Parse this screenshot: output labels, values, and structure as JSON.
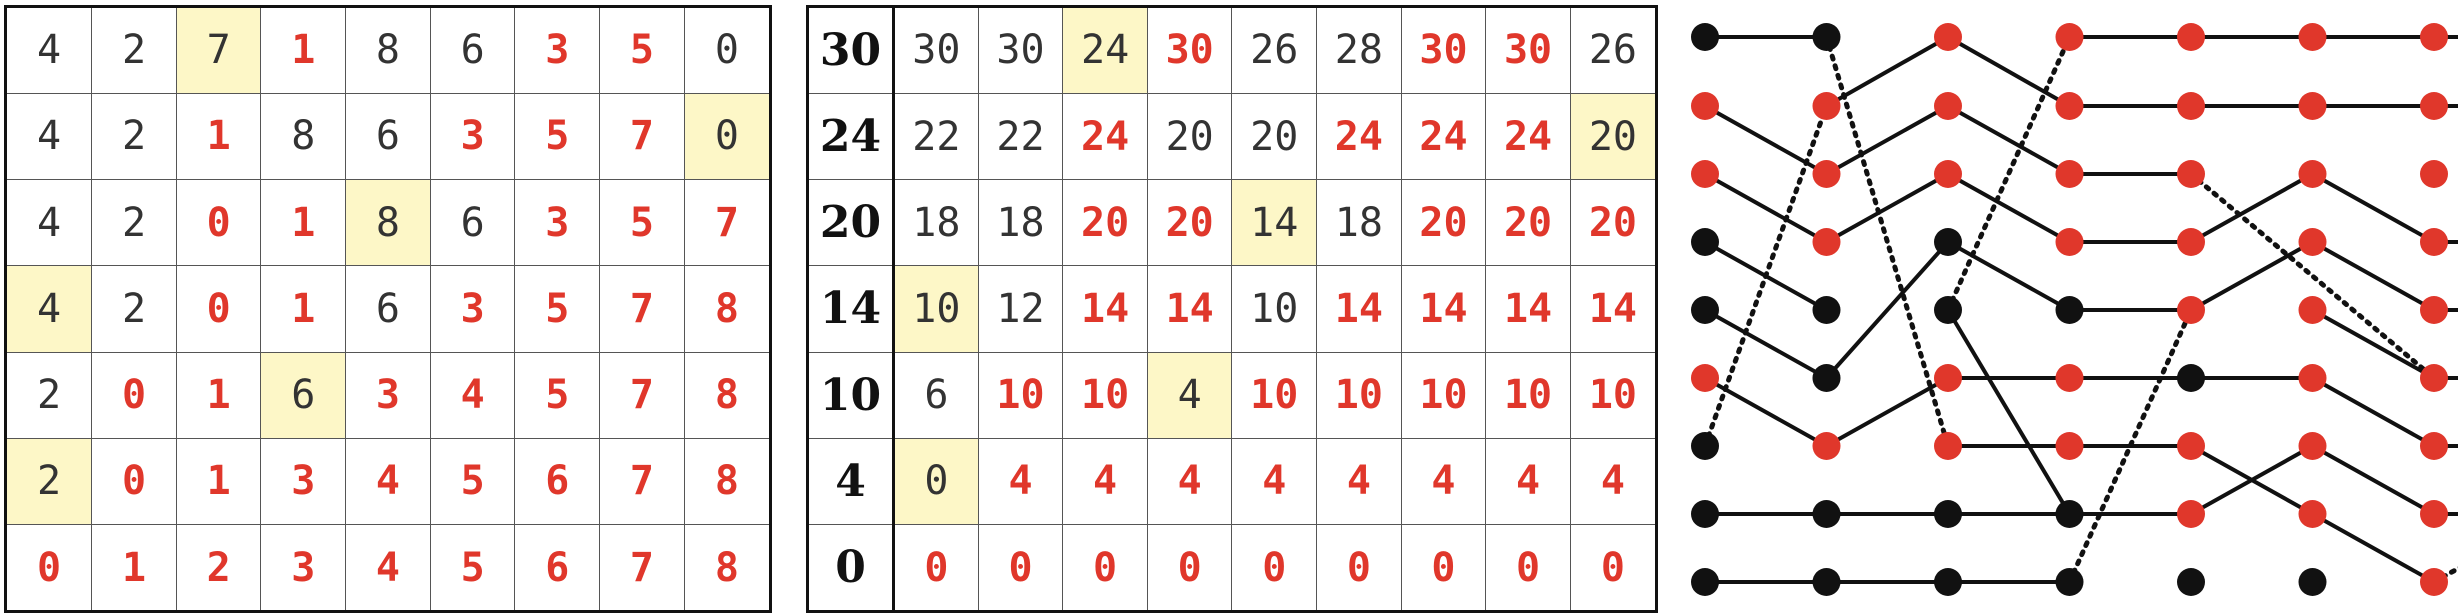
{
  "left_table": {
    "rows": [
      [
        "4",
        "2",
        "7",
        "1",
        "8",
        "6",
        "3",
        "5",
        "0"
      ],
      [
        "4",
        "2",
        "1",
        "8",
        "6",
        "3",
        "5",
        "7",
        "0"
      ],
      [
        "4",
        "2",
        "0",
        "1",
        "8",
        "6",
        "3",
        "5",
        "7"
      ],
      [
        "4",
        "2",
        "0",
        "1",
        "6",
        "3",
        "5",
        "7",
        "8"
      ],
      [
        "2",
        "0",
        "1",
        "6",
        "3",
        "4",
        "5",
        "7",
        "8"
      ],
      [
        "2",
        "0",
        "1",
        "3",
        "4",
        "5",
        "6",
        "7",
        "8"
      ],
      [
        "0",
        "1",
        "2",
        "3",
        "4",
        "5",
        "6",
        "7",
        "8"
      ]
    ],
    "red": [
      [
        0,
        0,
        0,
        1,
        0,
        0,
        1,
        1,
        0
      ],
      [
        0,
        0,
        1,
        0,
        0,
        1,
        1,
        1,
        0
      ],
      [
        0,
        0,
        1,
        1,
        0,
        0,
        1,
        1,
        1
      ],
      [
        0,
        0,
        1,
        1,
        0,
        1,
        1,
        1,
        1
      ],
      [
        0,
        1,
        1,
        0,
        1,
        1,
        1,
        1,
        1
      ],
      [
        0,
        1,
        1,
        1,
        1,
        1,
        1,
        1,
        1
      ],
      [
        1,
        1,
        1,
        1,
        1,
        1,
        1,
        1,
        1
      ]
    ],
    "highlight": [
      [
        0,
        2
      ],
      [
        1,
        8
      ],
      [
        2,
        4
      ],
      [
        3,
        0
      ],
      [
        4,
        3
      ],
      [
        5,
        0
      ]
    ]
  },
  "middle_table": {
    "row_labels": [
      "30",
      "24",
      "20",
      "14",
      "10",
      "4",
      "0"
    ],
    "rows": [
      [
        "30",
        "30",
        "24",
        "30",
        "26",
        "28",
        "30",
        "30",
        "26"
      ],
      [
        "22",
        "22",
        "24",
        "20",
        "20",
        "24",
        "24",
        "24",
        "20"
      ],
      [
        "18",
        "18",
        "20",
        "20",
        "14",
        "18",
        "20",
        "20",
        "20"
      ],
      [
        "10",
        "12",
        "14",
        "14",
        "10",
        "14",
        "14",
        "14",
        "14"
      ],
      [
        "6",
        "10",
        "10",
        "4",
        "10",
        "10",
        "10",
        "10",
        "10"
      ],
      [
        "0",
        "4",
        "4",
        "4",
        "4",
        "4",
        "4",
        "4",
        "4"
      ],
      [
        "0",
        "0",
        "0",
        "0",
        "0",
        "0",
        "0",
        "0",
        "0"
      ]
    ],
    "red": [
      [
        0,
        0,
        0,
        1,
        0,
        0,
        1,
        1,
        0
      ],
      [
        0,
        0,
        1,
        0,
        0,
        1,
        1,
        1,
        0
      ],
      [
        0,
        0,
        1,
        1,
        0,
        0,
        1,
        1,
        1
      ],
      [
        0,
        0,
        1,
        1,
        0,
        1,
        1,
        1,
        1
      ],
      [
        0,
        1,
        1,
        0,
        1,
        1,
        1,
        1,
        1
      ],
      [
        0,
        1,
        1,
        1,
        1,
        1,
        1,
        1,
        1
      ],
      [
        1,
        1,
        1,
        1,
        1,
        1,
        1,
        1,
        1
      ]
    ],
    "highlight": [
      [
        0,
        2
      ],
      [
        1,
        8
      ],
      [
        2,
        4
      ],
      [
        3,
        0
      ],
      [
        4,
        3
      ],
      [
        5,
        0
      ]
    ]
  },
  "network": {
    "colors": {
      "red": "#e0372b",
      "black": "#111111"
    },
    "node_colors": [
      [
        "B",
        "B",
        "R",
        "R",
        "R",
        "R",
        "R",
        "R"
      ],
      [
        "R",
        "R",
        "R",
        "R",
        "R",
        "R",
        "R",
        "R"
      ],
      [
        "R",
        "R",
        "R",
        "R",
        "R",
        "R",
        "R",
        "R"
      ],
      [
        "B",
        "R",
        "B",
        "R",
        "R",
        "R",
        "R",
        "R"
      ],
      [
        "B",
        "B",
        "B",
        "B",
        "R",
        "R",
        "R",
        "R"
      ],
      [
        "R",
        "B",
        "R",
        "R",
        "B",
        "R",
        "R",
        "R"
      ],
      [
        "B",
        "R",
        "R",
        "R",
        "R",
        "R",
        "R",
        "R"
      ],
      [
        "B",
        "B",
        "B",
        "B",
        "R",
        "R",
        "R",
        "R"
      ],
      [
        "B",
        "B",
        "B",
        "B",
        "B",
        "B",
        "R",
        "R"
      ]
    ],
    "solid_edges": [
      [
        0,
        0,
        0,
        1
      ],
      [
        1,
        0,
        2,
        1
      ],
      [
        2,
        0,
        3,
        1
      ],
      [
        3,
        0,
        4,
        1
      ],
      [
        4,
        0,
        5,
        1
      ],
      [
        5,
        0,
        6,
        1
      ],
      [
        7,
        0,
        7,
        1
      ],
      [
        8,
        0,
        8,
        1
      ],
      [
        1,
        1,
        0,
        2
      ],
      [
        2,
        1,
        1,
        2
      ],
      [
        3,
        1,
        2,
        2
      ],
      [
        5,
        1,
        3,
        2
      ],
      [
        6,
        1,
        5,
        2
      ],
      [
        7,
        1,
        7,
        2
      ],
      [
        8,
        1,
        8,
        2
      ],
      [
        0,
        2,
        1,
        3
      ],
      [
        1,
        2,
        2,
        3
      ],
      [
        2,
        2,
        3,
        3
      ],
      [
        3,
        2,
        4,
        3
      ],
      [
        4,
        2,
        7,
        3
      ],
      [
        5,
        2,
        5,
        3
      ],
      [
        6,
        2,
        6,
        3
      ],
      [
        7,
        2,
        7,
        3
      ],
      [
        8,
        2,
        8,
        3
      ],
      [
        0,
        3,
        0,
        4
      ],
      [
        1,
        3,
        1,
        4
      ],
      [
        2,
        3,
        2,
        4
      ],
      [
        3,
        3,
        3,
        4
      ],
      [
        4,
        3,
        4,
        4
      ],
      [
        5,
        3,
        5,
        4
      ],
      [
        6,
        3,
        6,
        4
      ],
      [
        7,
        3,
        7,
        4
      ],
      [
        0,
        4,
        0,
        5
      ],
      [
        1,
        4,
        1,
        5
      ],
      [
        3,
        4,
        2,
        5
      ],
      [
        4,
        4,
        3,
        5
      ],
      [
        5,
        4,
        5,
        5
      ],
      [
        6,
        4,
        7,
        5
      ],
      [
        7,
        4,
        6,
        5
      ],
      [
        0,
        5,
        0,
        6
      ],
      [
        1,
        5,
        1,
        6
      ],
      [
        2,
        5,
        3,
        6
      ],
      [
        3,
        5,
        4,
        6
      ],
      [
        4,
        5,
        5,
        6
      ],
      [
        5,
        5,
        6,
        6
      ],
      [
        6,
        5,
        7,
        6
      ],
      [
        7,
        5,
        8,
        6
      ],
      [
        0,
        6,
        0,
        7
      ],
      [
        1,
        6,
        1,
        7
      ],
      [
        3,
        6,
        3,
        7
      ],
      [
        4,
        6,
        4,
        7
      ],
      [
        5,
        6,
        5,
        7
      ],
      [
        6,
        6,
        6,
        7
      ],
      [
        7,
        6,
        7,
        7
      ]
    ],
    "dotted_edges": [
      [
        6,
        0,
        1,
        1
      ],
      [
        0,
        1,
        6,
        2
      ],
      [
        4,
        2,
        0,
        3
      ],
      [
        8,
        3,
        4,
        4
      ],
      [
        2,
        4,
        5,
        6
      ],
      [
        8,
        6,
        7,
        7
      ]
    ]
  }
}
